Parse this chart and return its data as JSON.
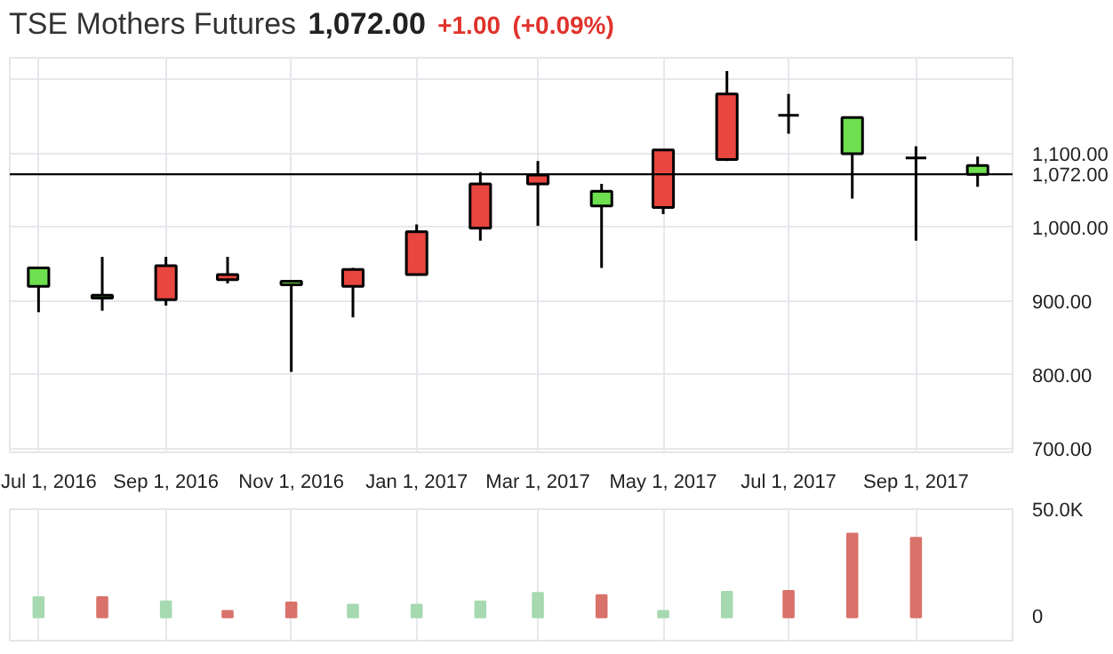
{
  "chart_data": [
    {
      "type": "candlestick",
      "title": "TSE Mothers Futures",
      "annotations": [
        "1,072.00",
        "+1.00",
        "(+0.09%)"
      ],
      "x": [
        "2016-07",
        "2016-08",
        "2016-09",
        "2016-10",
        "2016-11",
        "2016-12",
        "2017-01",
        "2017-02",
        "2017-03",
        "2017-04",
        "2017-05",
        "2017-06",
        "2017-07",
        "2017-08",
        "2017-09",
        "2017-10"
      ],
      "ohlc": [
        [
          945,
          945,
          885,
          920
        ],
        [
          908,
          960,
          887,
          904
        ],
        [
          902,
          960,
          894,
          948
        ],
        [
          929,
          960,
          924,
          936
        ],
        [
          927,
          928,
          804,
          922
        ],
        [
          920,
          945,
          878,
          943
        ],
        [
          936,
          1004,
          936,
          994
        ],
        [
          999,
          1075,
          982,
          1059
        ],
        [
          1059,
          1090,
          1002,
          1071
        ],
        [
          1049,
          1059,
          945,
          1029
        ],
        [
          1027,
          1105,
          1018,
          1105
        ],
        [
          1092,
          1212,
          1090,
          1181
        ],
        [
          1152,
          1181,
          1127,
          1152
        ],
        [
          1149,
          1150,
          1039,
          1100
        ],
        [
          1094,
          1110,
          982,
          1094
        ],
        [
          1084,
          1096,
          1055,
          1072
        ]
      ],
      "colors": [
        "#6ee04f",
        "#6ee04f",
        "#e8463f",
        "#e8463f",
        "#6ee04f",
        "#e8463f",
        "#e8463f",
        "#e8463f",
        "#e8463f",
        "#6ee04f",
        "#e8463f",
        "#e8463f",
        "#000000",
        "#6ee04f",
        "#000000",
        "#6ee04f"
      ],
      "xlim": [
        "2016-06-17",
        "2017-10-18"
      ],
      "xticks": [
        {
          "value": "2016-07-01",
          "label": "Jul 1, 2016"
        },
        {
          "value": "2016-09-01",
          "label": "Sep 1, 2016"
        },
        {
          "value": "2016-11-01",
          "label": "Nov 1, 2016"
        },
        {
          "value": "2017-01-01",
          "label": "Jan 1, 2017"
        },
        {
          "value": "2017-03-01",
          "label": "Mar 1, 2017"
        },
        {
          "value": "2017-05-01",
          "label": "May 1, 2017"
        },
        {
          "value": "2017-07-01",
          "label": "Jul 1, 2017"
        },
        {
          "value": "2017-09-01",
          "label": "Sep 1, 2017"
        }
      ],
      "ylim": [
        695,
        1230
      ],
      "yticks": [
        {
          "value": 700,
          "label": "700.00"
        },
        {
          "value": 800,
          "label": "800.00"
        },
        {
          "value": 900,
          "label": "900.00"
        },
        {
          "value": 1000,
          "label": "1,000.00"
        },
        {
          "value": 1100,
          "label": "1,100.00"
        },
        {
          "value": 1200,
          "label": null
        }
      ],
      "ref_lines": [
        {
          "axis": "y",
          "value": 1072,
          "label": "1,072.00",
          "color": "#000000"
        }
      ],
      "grid": true
    },
    {
      "type": "bar",
      "x": [
        "2016-07",
        "2016-08",
        "2016-09",
        "2016-10",
        "2016-11",
        "2016-12",
        "2017-01",
        "2017-02",
        "2017-03",
        "2017-04",
        "2017-05",
        "2017-06",
        "2017-07",
        "2017-08",
        "2017-09"
      ],
      "values": [
        9500,
        9500,
        7500,
        3000,
        7000,
        6000,
        6000,
        7500,
        11500,
        10500,
        3000,
        12000,
        12500,
        39500,
        37500
      ],
      "colors": [
        "#a6d9b0",
        "#d9726b",
        "#a6d9b0",
        "#d9726b",
        "#d9726b",
        "#a6d9b0",
        "#a6d9b0",
        "#a6d9b0",
        "#a6d9b0",
        "#d9726b",
        "#a6d9b0",
        "#a6d9b0",
        "#d9726b",
        "#d9726b",
        "#d9726b"
      ],
      "xlim": [
        "2016-06-17",
        "2017-10-18"
      ],
      "xticks": [
        {
          "value": "2016-07-01",
          "label": null
        },
        {
          "value": "2016-09-01",
          "label": null
        },
        {
          "value": "2016-11-01",
          "label": null
        },
        {
          "value": "2017-01-01",
          "label": null
        },
        {
          "value": "2017-03-01",
          "label": null
        },
        {
          "value": "2017-05-01",
          "label": null
        },
        {
          "value": "2017-07-01",
          "label": null
        },
        {
          "value": "2017-09-01",
          "label": null
        }
      ],
      "ylim": [
        -11000,
        51000
      ],
      "yticks": [
        0,
        {
          "value": 50000,
          "label": "50.0K"
        }
      ],
      "tick_labels": "y",
      "grid": "x"
    }
  ]
}
